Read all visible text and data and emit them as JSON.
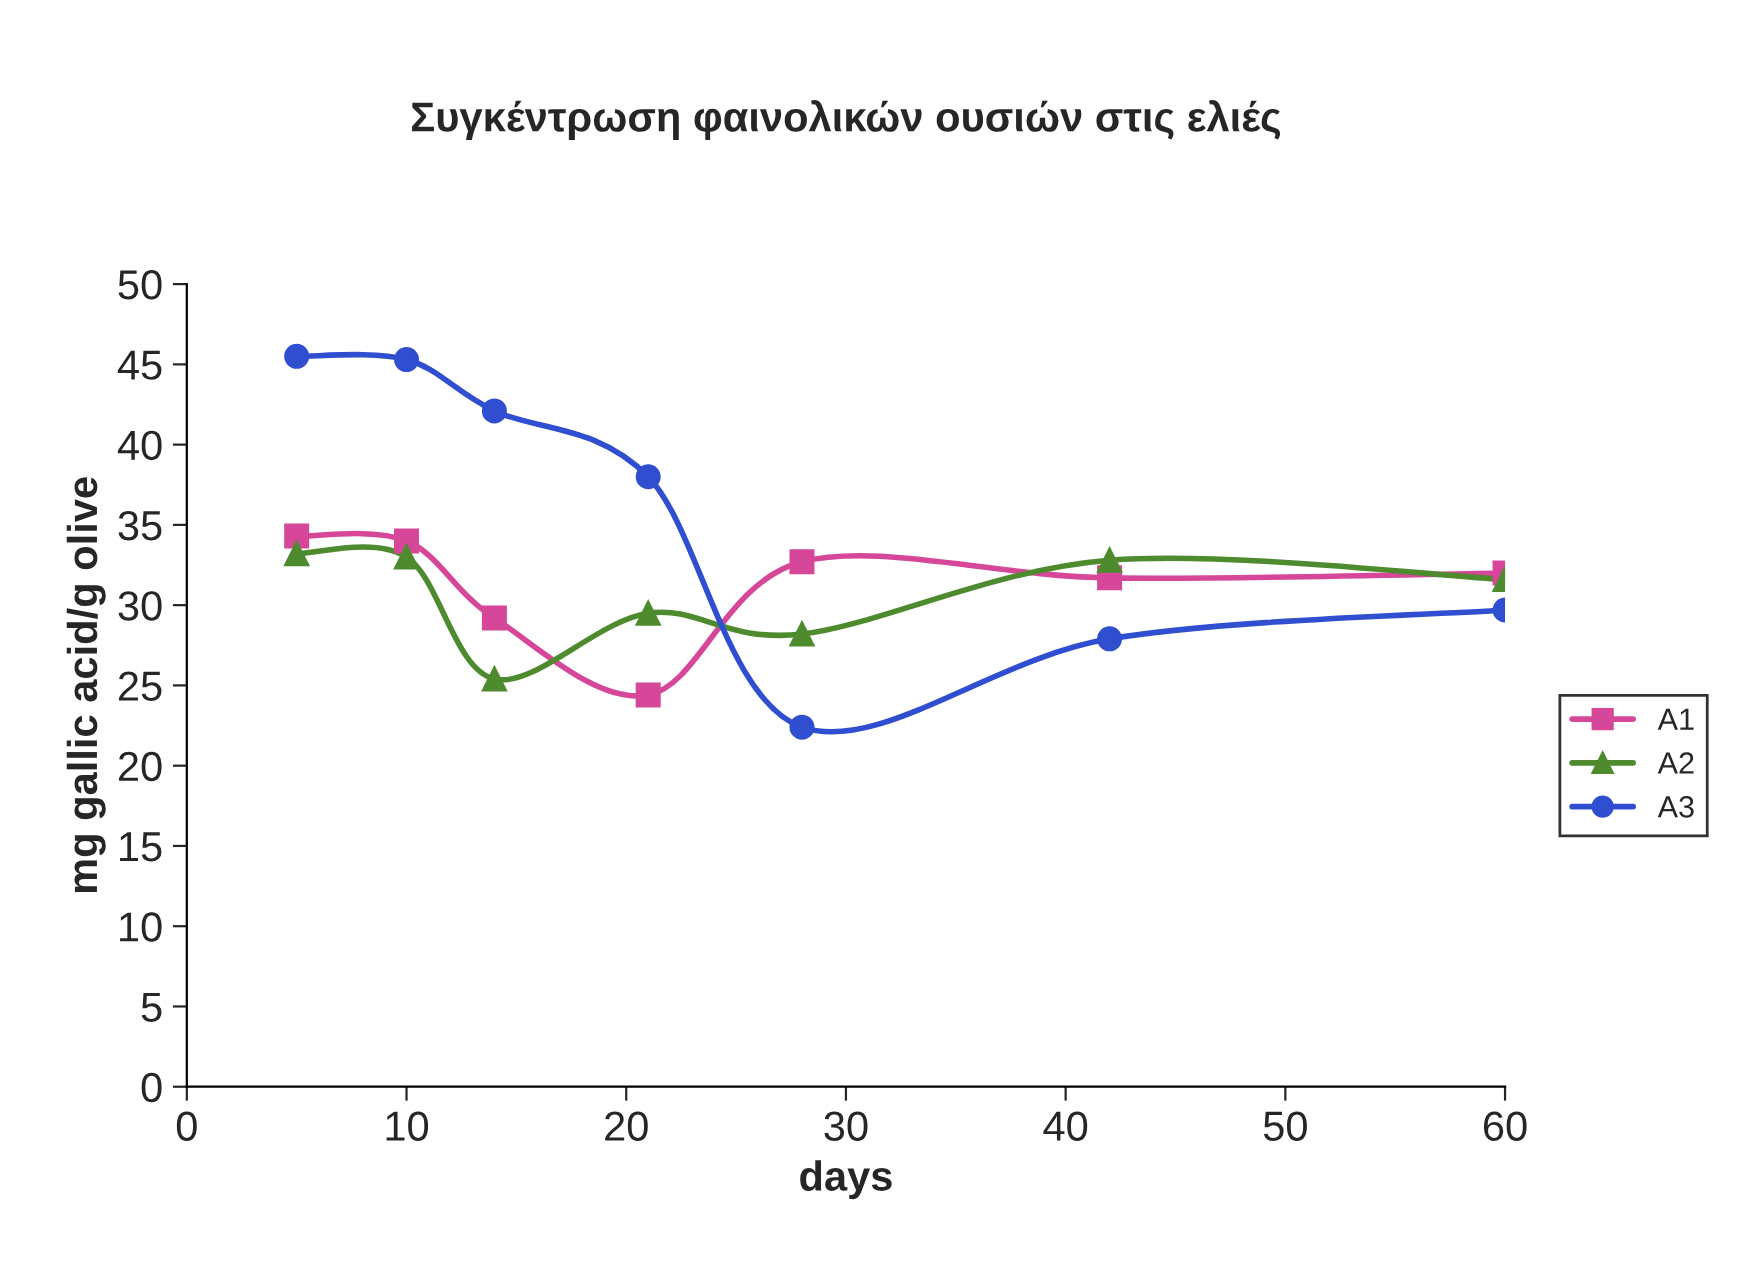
{
  "chart_data": {
    "type": "line",
    "title": "Συγκέντρωση φαινολικών ουσιών στις ελιές",
    "xlabel": "days",
    "ylabel": "mg gallic acid/g olive",
    "x": [
      5,
      10,
      14,
      21,
      28,
      42,
      60
    ],
    "series": [
      {
        "name": "A1",
        "color": "#d6479a",
        "marker": "square",
        "values": [
          34.3,
          34.0,
          29.2,
          24.4,
          32.7,
          31.7,
          32.0
        ]
      },
      {
        "name": "A2",
        "color": "#4e8a2e",
        "marker": "triangle",
        "values": [
          33.2,
          33.0,
          25.4,
          29.5,
          28.2,
          32.8,
          31.6
        ]
      },
      {
        "name": "A3",
        "color": "#2f4fd0",
        "marker": "circle",
        "values": [
          45.5,
          45.3,
          42.1,
          38.0,
          22.4,
          27.9,
          29.7
        ]
      }
    ],
    "xlim": [
      0,
      60
    ],
    "xticks": [
      0,
      10,
      20,
      30,
      40,
      50,
      60
    ],
    "ylim": [
      0,
      50
    ],
    "yticks": [
      0,
      5,
      10,
      15,
      20,
      25,
      30,
      35,
      40,
      45,
      50
    ],
    "grid": false,
    "legend": "right",
    "line_style": "solid"
  }
}
